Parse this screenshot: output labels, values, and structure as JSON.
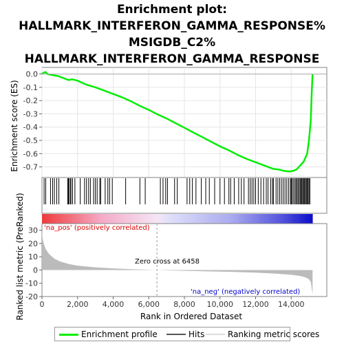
{
  "title_lines": [
    "Enrichment plot:",
    "HALLMARK_INTERFERON_GAMMA_RESPONSE%",
    "MSIGDB_C2%",
    "HALLMARK_INTERFERON_GAMMA_RESPONSE"
  ],
  "colors": {
    "es_line": "#00ee00",
    "hits": "#000000",
    "metric_fill": "#bbbbbb",
    "pos_label": "#dd0000",
    "neg_label": "#0000cc",
    "zero_line": "#aaaaaa"
  },
  "chart_data": [
    {
      "type": "line",
      "name": "enrichment-score-panel",
      "ylabel": "Enrichment score (ES)",
      "ylim": [
        -0.78,
        0.05
      ],
      "yticks": [
        "0.0",
        "-0.1",
        "-0.2",
        "-0.3",
        "-0.4",
        "-0.5",
        "-0.6",
        "-0.7"
      ],
      "grid": true,
      "series": [
        {
          "name": "Enrichment profile",
          "x": [
            0,
            100,
            200,
            300,
            500,
            700,
            900,
            1100,
            1300,
            1500,
            1700,
            2000,
            2500,
            3000,
            3500,
            4000,
            4500,
            5000,
            5500,
            6000,
            6500,
            7000,
            7500,
            8000,
            8500,
            9000,
            9500,
            10000,
            10500,
            11000,
            11500,
            12000,
            12500,
            13000,
            13300,
            13600,
            13900,
            14100,
            14300,
            14500,
            14700,
            14900,
            15000,
            15100,
            15150,
            15200
          ],
          "y": [
            0.0,
            0.01,
            0.015,
            0.0,
            -0.005,
            -0.01,
            -0.015,
            -0.025,
            -0.035,
            -0.045,
            -0.04,
            -0.05,
            -0.08,
            -0.1,
            -0.125,
            -0.15,
            -0.175,
            -0.205,
            -0.24,
            -0.27,
            -0.305,
            -0.335,
            -0.37,
            -0.405,
            -0.44,
            -0.475,
            -0.51,
            -0.545,
            -0.575,
            -0.61,
            -0.64,
            -0.665,
            -0.69,
            -0.715,
            -0.72,
            -0.73,
            -0.735,
            -0.73,
            -0.72,
            -0.69,
            -0.66,
            -0.6,
            -0.5,
            -0.35,
            -0.15,
            0.0
          ]
        }
      ]
    },
    {
      "type": "other",
      "name": "hits-panel",
      "hits": [
        120,
        210,
        480,
        600,
        700,
        830,
        950,
        1450,
        1480,
        1520,
        1600,
        1630,
        1720,
        1850,
        2150,
        2390,
        2500,
        2620,
        2720,
        2900,
        3000,
        3100,
        3250,
        3300,
        3550,
        3700,
        3800,
        3950,
        4700,
        5500,
        5800,
        6650,
        6800,
        6950,
        7050,
        7450,
        7600,
        8150,
        8300,
        8450,
        8650,
        8950,
        9200,
        9400,
        9700,
        10000,
        10250,
        10500,
        10600,
        10800,
        11050,
        11200,
        11350,
        11600,
        11700,
        11800,
        11900,
        12000,
        12150,
        12300,
        12450,
        12600,
        12700,
        12850,
        12950,
        13000,
        13150,
        13250,
        13350,
        13450,
        13550,
        13650,
        13750,
        13850,
        13950,
        14000,
        14050,
        14120,
        14200,
        14260,
        14320,
        14380,
        14440,
        14500,
        14550,
        14600,
        14650,
        14700,
        14750,
        14800,
        14850,
        14900,
        14950,
        15000,
        15050
      ],
      "pos_label": "'na_pos' (positively correlated)",
      "neg_label": "'na_neg' (negatively correlated)"
    },
    {
      "type": "area",
      "name": "ranked-metric-panel",
      "xlabel": "Rank in Ordered Dataset",
      "ylabel": "Ranked list metric (PreRanked)",
      "ylim": [
        -20,
        35
      ],
      "yticks": [
        "30",
        "20",
        "10",
        "0",
        "-10",
        "-20"
      ],
      "xlim": [
        0,
        16000
      ],
      "xticks": [
        "0",
        "2,000",
        "4,000",
        "6,000",
        "8,000",
        "10,000",
        "12,000",
        "14,000"
      ],
      "zero_cross": 6458,
      "zero_cross_label": "Zero cross at 6458",
      "series": [
        {
          "name": "Ranking metric scores",
          "x": [
            0,
            30,
            100,
            200,
            400,
            700,
            1000,
            1500,
            2000,
            3000,
            4000,
            5000,
            6000,
            6458,
            7000,
            8000,
            9000,
            10000,
            11000,
            12000,
            13000,
            14000,
            14500,
            14800,
            15000,
            15100,
            15200
          ],
          "y": [
            32,
            24,
            20,
            16,
            12,
            8.5,
            6.5,
            4.5,
            3.3,
            2.0,
            1.2,
            0.6,
            0.2,
            0,
            -0.3,
            -0.6,
            -0.9,
            -1.2,
            -1.6,
            -2.0,
            -2.6,
            -3.6,
            -4.5,
            -5.5,
            -7,
            -9,
            -18
          ]
        }
      ]
    }
  ],
  "legend": {
    "items": [
      "Enrichment profile",
      "Hits",
      "Ranking metric scores"
    ]
  }
}
